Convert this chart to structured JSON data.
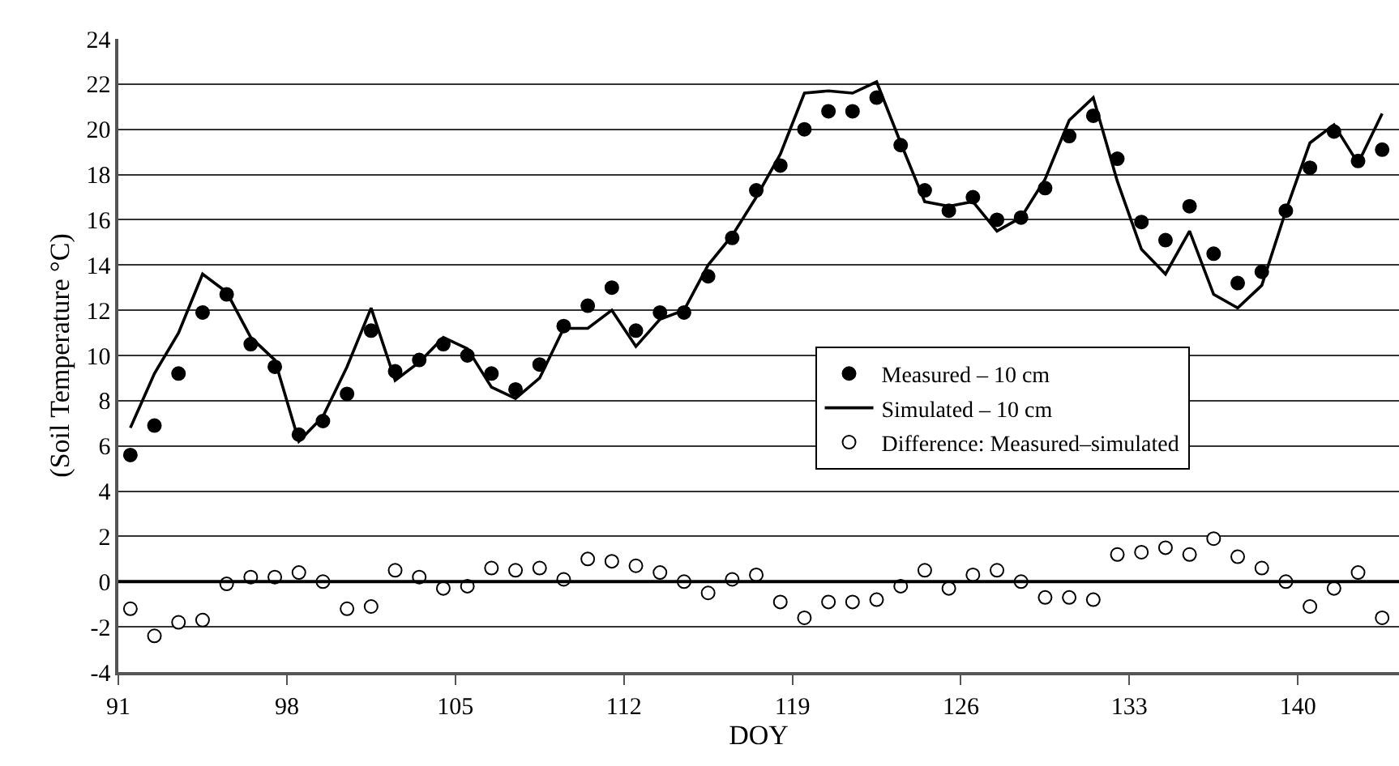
{
  "chart_data": {
    "type": "scatter",
    "xlabel": "DOY",
    "ylabel": "(Soil Temperature °C)",
    "xlim": [
      91,
      144.2
    ],
    "xticks": [
      91,
      98,
      105,
      112,
      119,
      126,
      133,
      140
    ],
    "ylim": [
      -4,
      24
    ],
    "yticks": [
      -4,
      -2,
      0,
      2,
      4,
      6,
      8,
      10,
      12,
      14,
      16,
      18,
      20,
      22,
      24
    ],
    "grid": "y",
    "legend": "right",
    "ref_lines": [
      {
        "axis": "y",
        "value": 0,
        "color": "#000000"
      }
    ],
    "x": [
      91.5,
      92.5,
      93.5,
      94.5,
      95.5,
      96.5,
      97.5,
      98.5,
      99.5,
      100.5,
      101.5,
      102.5,
      103.5,
      104.5,
      105.5,
      106.5,
      107.5,
      108.5,
      109.5,
      110.5,
      111.5,
      112.5,
      113.5,
      114.5,
      115.5,
      116.5,
      117.5,
      118.5,
      119.5,
      120.5,
      121.5,
      122.5,
      123.5,
      124.5,
      125.5,
      126.5,
      127.5,
      128.5,
      129.5,
      130.5,
      131.5,
      132.5,
      133.5,
      134.5,
      135.5,
      136.5,
      137.5,
      138.5,
      139.5,
      140.5,
      141.5,
      142.5,
      143.5
    ],
    "series": [
      {
        "name": "Measured – 10 cm",
        "marker": "circle",
        "color": "#000000",
        "values": [
          5.6,
          6.9,
          9.2,
          11.9,
          12.7,
          10.5,
          9.5,
          6.5,
          7.1,
          8.3,
          11.1,
          9.3,
          9.8,
          10.5,
          10.0,
          9.2,
          8.5,
          9.6,
          11.3,
          12.2,
          13.0,
          11.1,
          11.9,
          11.9,
          13.5,
          15.2,
          17.3,
          18.4,
          20.0,
          20.8,
          20.8,
          21.4,
          19.3,
          17.3,
          16.4,
          17.0,
          16.0,
          16.1,
          17.4,
          19.7,
          20.6,
          18.7,
          15.9,
          15.1,
          16.6,
          14.5,
          13.2,
          13.7,
          16.4,
          18.3,
          19.9,
          18.6,
          19.1
        ]
      },
      {
        "name": "Simulated – 10 cm",
        "type": "line",
        "marker": "none",
        "line_style": "solid",
        "color": "#000000",
        "values": [
          6.8,
          9.2,
          11.0,
          13.6,
          12.8,
          10.8,
          9.8,
          6.2,
          7.3,
          9.5,
          12.1,
          8.9,
          9.7,
          10.8,
          10.3,
          8.6,
          8.1,
          9.0,
          11.2,
          11.2,
          12.0,
          10.4,
          11.6,
          12.0,
          14.0,
          15.3,
          17.0,
          18.9,
          21.6,
          21.7,
          21.6,
          22.1,
          19.4,
          16.8,
          16.6,
          16.8,
          15.5,
          16.1,
          17.8,
          20.4,
          21.4,
          17.7,
          14.7,
          13.6,
          15.5,
          12.7,
          12.1,
          13.1,
          16.4,
          19.4,
          20.2,
          18.5,
          20.7
        ]
      },
      {
        "name": "Difference: Measured–simulated",
        "marker": "circle",
        "color": "#ffffff",
        "values": [
          -1.2,
          -2.4,
          -1.8,
          -1.7,
          -0.1,
          0.2,
          0.2,
          0.4,
          0.0,
          -1.2,
          -1.1,
          0.5,
          0.2,
          -0.3,
          -0.2,
          0.6,
          0.5,
          0.6,
          0.1,
          1.0,
          0.9,
          0.7,
          0.4,
          0.0,
          -0.5,
          0.1,
          0.3,
          -0.9,
          -1.6,
          -0.9,
          -0.9,
          -0.8,
          -0.2,
          0.5,
          -0.3,
          0.3,
          0.5,
          0.0,
          -0.7,
          -0.7,
          -0.8,
          1.2,
          1.3,
          1.5,
          1.2,
          1.9,
          1.1,
          0.6,
          0.0,
          -1.1,
          -0.3,
          0.4,
          -1.6
        ]
      }
    ]
  }
}
